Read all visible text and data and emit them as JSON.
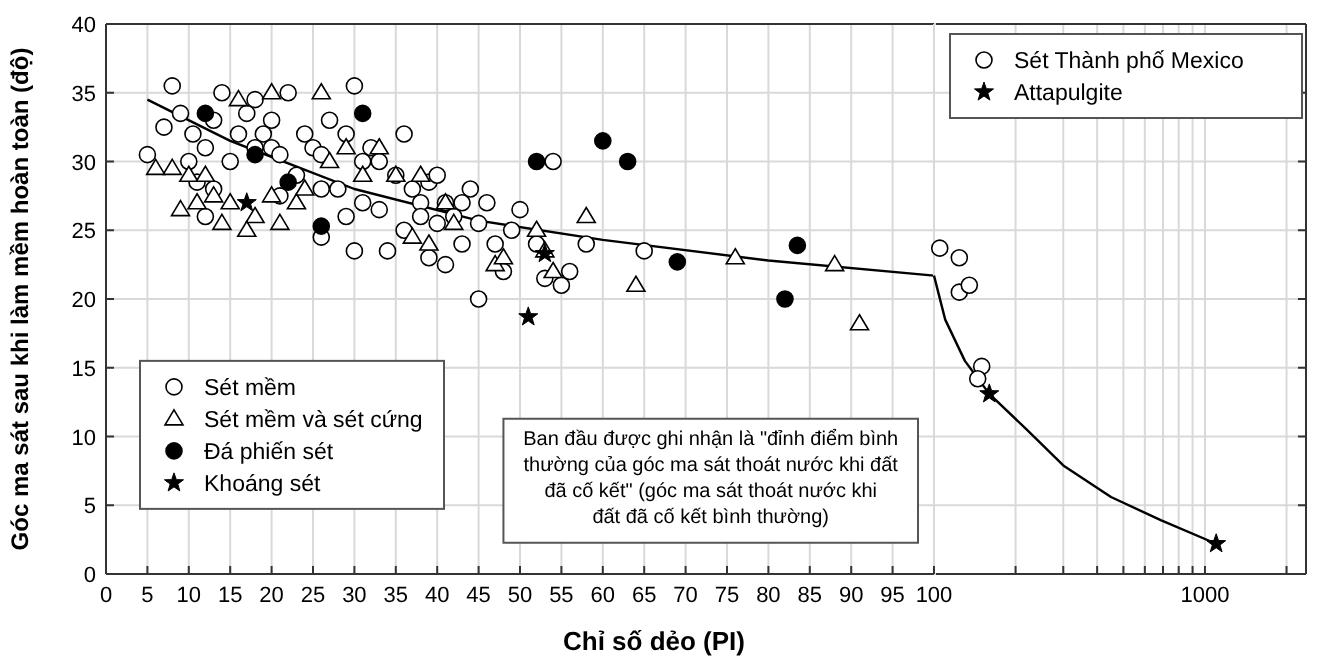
{
  "chart_data": [
    {
      "type": "scatter",
      "xlabel": "Chỉ số dẻo (PI)",
      "ylabel": "Góc ma sát sau khi làm mềm hoàn toàn (độ)",
      "xlim": [
        0,
        100
      ],
      "ylim": [
        0,
        40
      ],
      "xticks": [
        0,
        5,
        10,
        15,
        20,
        25,
        30,
        35,
        40,
        45,
        50,
        55,
        60,
        65,
        70,
        75,
        80,
        85,
        90,
        95
      ],
      "yticks": [
        0,
        5,
        10,
        15,
        20,
        25,
        30,
        35,
        40
      ],
      "grid": true,
      "legend": "bottom left",
      "annotations": [
        "Ban đầu được ghi nhận là \"đỉnh điểm bình thường của góc ma sát thoát nước khi đất đã cố kết\" (góc ma sát thoát nước khi đất đã cố kết bình thường)"
      ],
      "series": [
        {
          "name": "Sét mềm",
          "marker": "circle",
          "color": "#ffffff",
          "x": [
            5,
            8,
            7,
            9,
            10.5,
            10,
            12,
            13,
            11,
            13,
            14,
            15,
            16,
            17,
            18,
            19,
            18,
            20,
            20,
            21,
            22,
            21,
            23,
            24,
            25,
            26,
            27,
            26,
            28,
            29,
            30,
            31,
            32,
            33,
            29,
            31,
            33,
            35,
            36,
            37,
            38,
            36,
            38,
            39,
            40,
            41,
            40,
            42,
            43,
            44,
            45,
            46,
            47,
            43,
            39,
            41,
            45,
            48,
            49,
            50,
            52,
            53,
            55,
            56,
            58,
            54,
            65,
            26,
            12,
            34,
            30
          ],
          "values": [
            30.5,
            35.5,
            32.5,
            33.5,
            32,
            30,
            31,
            33,
            28.5,
            28,
            35,
            30,
            32,
            33.5,
            34.5,
            32,
            31,
            33,
            31,
            30.5,
            35,
            27.5,
            29,
            32,
            31,
            30.5,
            33,
            28,
            28,
            32,
            35.5,
            30,
            31,
            30,
            26,
            27,
            26.5,
            29,
            32,
            28,
            27,
            25,
            26,
            28.5,
            29,
            27,
            25.5,
            26,
            27,
            28,
            25.5,
            27,
            24,
            24,
            23,
            22.5,
            20,
            22,
            25,
            26.5,
            24,
            21.5,
            21,
            22,
            24,
            30,
            23.5,
            24.5,
            26,
            23.5,
            23.5
          ]
        },
        {
          "name": "Sét mềm và sét cứng",
          "marker": "triangle",
          "color": "#ffffff",
          "x": [
            8,
            6,
            10,
            11,
            13,
            12,
            9,
            15,
            14,
            18,
            20,
            23,
            16,
            20,
            17,
            21,
            24,
            27,
            29,
            26,
            31,
            33,
            35,
            37,
            38,
            39,
            41,
            42,
            47,
            48,
            52,
            53,
            54,
            58,
            64,
            76,
            88,
            91
          ],
          "values": [
            29.5,
            29.5,
            29,
            27,
            27.5,
            29,
            26.5,
            27,
            25.5,
            26,
            27.5,
            27,
            34.5,
            35,
            25,
            25.5,
            28,
            30,
            31,
            35,
            29,
            31,
            29,
            24.5,
            29,
            24,
            27,
            25.5,
            22.5,
            23,
            25,
            23.5,
            22,
            26,
            21,
            23,
            22.5,
            18.2
          ]
        },
        {
          "name": "Đá phiến sét",
          "marker": "circle",
          "color": "#000000",
          "x": [
            12,
            18,
            22,
            26,
            31,
            52,
            60,
            63,
            69,
            82,
            83.5
          ],
          "values": [
            33.5,
            30.5,
            28.5,
            25.3,
            33.5,
            30,
            31.5,
            30,
            22.7,
            20,
            23.9
          ]
        },
        {
          "name": "Khoáng sét",
          "marker": "star",
          "color": "#000000",
          "x": [
            17,
            51,
            53
          ],
          "values": [
            27,
            18.7,
            23.3
          ]
        },
        {
          "type": "line",
          "color": "#000000",
          "x": [
            5,
            15,
            30,
            45,
            60,
            80,
            100
          ],
          "values": [
            34.5,
            31.5,
            28,
            25.7,
            24.3,
            22.8,
            21.7
          ]
        }
      ]
    },
    {
      "type": "scatter",
      "xlim": [
        100,
        2360
      ],
      "ylim": [
        0,
        40
      ],
      "log": "x",
      "tick_labels": "x",
      "xticks": [
        100,
        {
          "value": 200,
          "label": null
        },
        {
          "value": 300,
          "label": null
        },
        {
          "value": 400,
          "label": null
        },
        {
          "value": 500,
          "label": null
        },
        {
          "value": 600,
          "label": null
        },
        {
          "value": 700,
          "label": null
        },
        {
          "value": 800,
          "label": null
        },
        {
          "value": 900,
          "label": null
        },
        1000,
        {
          "value": 2000,
          "label": null
        }
      ],
      "yticks": [
        0,
        5,
        10,
        15,
        20,
        25,
        30,
        35,
        40
      ],
      "grid": true,
      "legend": "top right",
      "series": [
        {
          "name": "Sét Thành phố Mexico",
          "marker": "circle",
          "color": "#ffffff",
          "x": [
            105,
            124,
            124,
            135,
            150,
            145
          ],
          "values": [
            23.7,
            23,
            20.5,
            21,
            15.1,
            14.2
          ]
        },
        {
          "name": "Attapulgite",
          "marker": "star",
          "color": "#000000",
          "x": [
            160,
            1100
          ],
          "values": [
            13.1,
            2.2
          ]
        },
        {
          "type": "line",
          "color": "#000000",
          "x": [
            100,
            110,
            130,
            160,
            220,
            300,
            450,
            690,
            1100
          ],
          "values": [
            21.7,
            18.5,
            15.5,
            13.1,
            10.5,
            7.9,
            5.6,
            3.9,
            2.2
          ]
        }
      ]
    }
  ]
}
